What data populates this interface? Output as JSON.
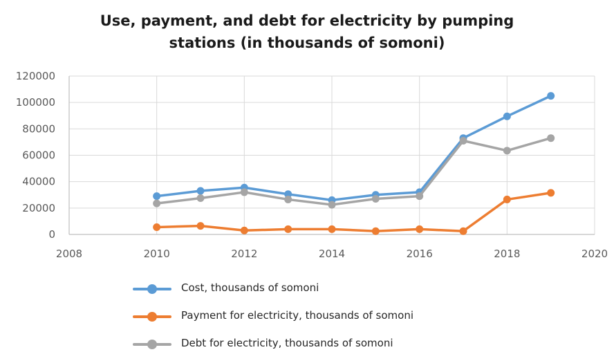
{
  "chart_data": {
    "type": "line",
    "title": "Use, payment, and debt for electricity by pumping stations (in thousands of somoni)",
    "title_lines": [
      "Use, payment, and debt for electricity by pumping",
      "stations (in thousands of somoni)"
    ],
    "xlabel": "",
    "ylabel": "",
    "xlim": [
      2008,
      2020
    ],
    "ylim": [
      0,
      120000
    ],
    "x_ticks": [
      2008,
      2010,
      2012,
      2014,
      2016,
      2018,
      2020
    ],
    "y_ticks": [
      0,
      20000,
      40000,
      60000,
      80000,
      100000,
      120000
    ],
    "grid": true,
    "legend_position": "bottom",
    "x": [
      2010,
      2011,
      2012,
      2013,
      2014,
      2015,
      2016,
      2017,
      2018,
      2019
    ],
    "series": [
      {
        "name": "Cost, thousands of somoni",
        "color": "#5b9bd5",
        "values": [
          29000,
          33000,
          35500,
          30500,
          26000,
          30000,
          32000,
          73000,
          89500,
          105000
        ]
      },
      {
        "name": "Payment for electricity, thousands of somoni",
        "color": "#ed7d31",
        "values": [
          5500,
          6500,
          3000,
          4000,
          4000,
          2500,
          4000,
          2500,
          26500,
          31500
        ]
      },
      {
        "name": "Debt for electricity, thousands of somoni",
        "color": "#a5a5a5",
        "values": [
          23500,
          27500,
          32000,
          26500,
          22500,
          27000,
          29000,
          71000,
          63500,
          73000
        ]
      }
    ]
  }
}
